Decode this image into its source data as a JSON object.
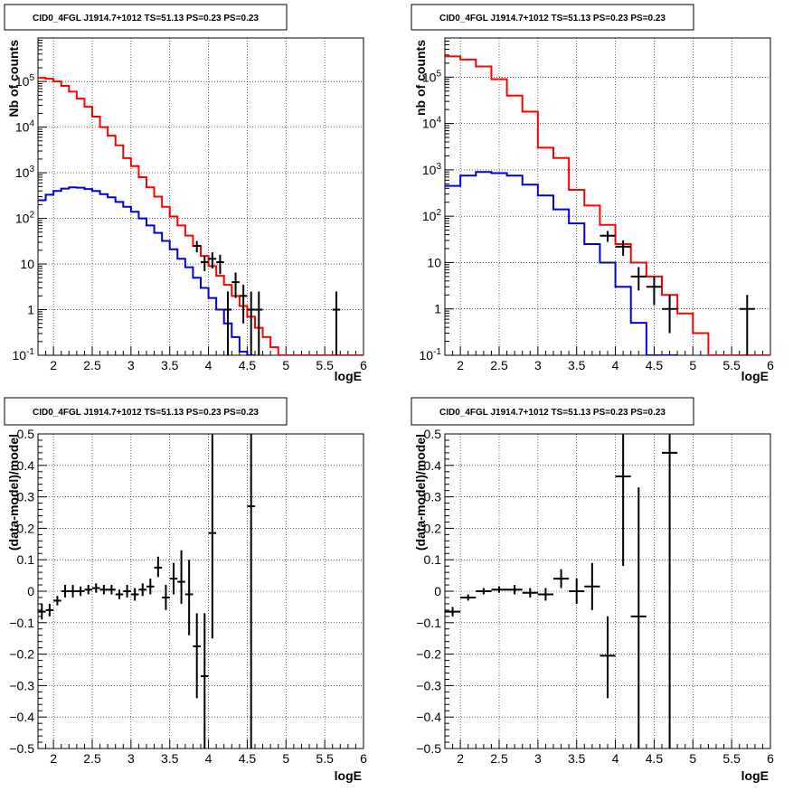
{
  "chart_data": [
    {
      "type": "histogram",
      "title": "CID0_4FGL J1914.7+1012 TS=51.13 PS=0.23 PS=0.23",
      "xlabel": "logE",
      "ylabel": "Nb of counts",
      "xlim": [
        1.8,
        6.0
      ],
      "ylim": [
        0.1,
        900000
      ],
      "yscale": "log",
      "grid": true,
      "xticks": [
        "2",
        "2.5",
        "3",
        "3.5",
        "4",
        "4.5",
        "5",
        "5.5",
        "6"
      ],
      "yticks": [
        "10^-1",
        "1",
        "10",
        "10^2",
        "10^3",
        "10^4",
        "10^5"
      ],
      "series": [
        {
          "color": "#ff0000",
          "kind": "step",
          "bins": [
            1.8,
            1.9,
            2.0,
            2.1,
            2.2,
            2.3,
            2.4,
            2.5,
            2.6,
            2.7,
            2.8,
            2.9,
            3.0,
            3.1,
            3.2,
            3.3,
            3.4,
            3.5,
            3.6,
            3.7,
            3.8,
            3.9,
            4.0,
            4.1,
            4.2,
            4.3,
            4.4,
            4.5,
            4.6,
            4.7,
            4.8,
            4.9,
            5.0,
            5.1,
            5.2,
            5.3,
            5.4,
            5.5,
            5.6,
            5.7,
            5.8,
            5.9,
            6.0
          ],
          "values": [
            120000,
            115000,
            100000,
            80000,
            60000,
            42000,
            28000,
            17000,
            10000,
            6500,
            4000,
            2100,
            1400,
            800,
            480,
            300,
            180,
            110,
            70,
            42,
            25,
            15,
            9,
            5.5,
            3.5,
            2,
            1.2,
            0.7,
            0.4,
            0.25,
            0.15,
            0.1,
            0.1,
            0.1,
            0.1,
            0.1,
            0.1,
            0.1,
            0.1,
            0.1,
            0.1,
            0.1
          ]
        },
        {
          "color": "#0000dd",
          "kind": "step",
          "bins": [
            1.8,
            1.9,
            2.0,
            2.1,
            2.2,
            2.3,
            2.4,
            2.5,
            2.6,
            2.7,
            2.8,
            2.9,
            3.0,
            3.1,
            3.2,
            3.3,
            3.4,
            3.5,
            3.6,
            3.7,
            3.8,
            3.9,
            4.0,
            4.1,
            4.2,
            4.3,
            4.4,
            4.5,
            4.6
          ],
          "values": [
            250,
            330,
            400,
            450,
            480,
            470,
            440,
            400,
            340,
            290,
            230,
            180,
            140,
            100,
            70,
            48,
            32,
            21,
            13,
            8.5,
            5,
            3,
            1.8,
            1,
            0.5,
            0.25,
            0.12,
            0.1,
            0.1
          ]
        },
        {
          "color": "#000000",
          "kind": "errorbar",
          "points": [
            {
              "x": 3.85,
              "y": 25,
              "xerr": 0.05,
              "ylo": 18,
              "yhi": 32
            },
            {
              "x": 3.95,
              "y": 11,
              "xerr": 0.05,
              "ylo": 7,
              "yhi": 15
            },
            {
              "x": 4.05,
              "y": 13,
              "xerr": 0.05,
              "ylo": 8,
              "yhi": 18
            },
            {
              "x": 4.15,
              "y": 11,
              "xerr": 0.05,
              "ylo": 6,
              "yhi": 16
            },
            {
              "x": 4.25,
              "y": 1,
              "xerr": 0.05,
              "ylo": 0.1,
              "yhi": 2.5
            },
            {
              "x": 4.35,
              "y": 4,
              "xerr": 0.05,
              "ylo": 1.8,
              "yhi": 6.5
            },
            {
              "x": 4.45,
              "y": 2,
              "xerr": 0.05,
              "ylo": 0.5,
              "yhi": 3.5
            },
            {
              "x": 4.55,
              "y": 1,
              "xerr": 0.05,
              "ylo": 0.1,
              "yhi": 2.5
            },
            {
              "x": 4.65,
              "y": 1,
              "xerr": 0.05,
              "ylo": 0.1,
              "yhi": 2.5
            },
            {
              "x": 5.65,
              "y": 1,
              "xerr": 0.05,
              "ylo": 0.1,
              "yhi": 2.5
            }
          ]
        }
      ]
    },
    {
      "type": "histogram",
      "title": "CID0_4FGL J1914.7+1012 TS=51.13 PS=0.23 PS=0.23",
      "xlabel": "logE",
      "ylabel": "nb of counts",
      "xlim": [
        1.8,
        6.0
      ],
      "ylim": [
        0.1,
        700000
      ],
      "yscale": "log",
      "grid": true,
      "xticks": [
        "2",
        "2.5",
        "3",
        "3.5",
        "4",
        "4.5",
        "5",
        "5.5",
        "6"
      ],
      "yticks": [
        "10^-1",
        "1",
        "10",
        "10^2",
        "10^3",
        "10^4",
        "10^5"
      ],
      "series": [
        {
          "color": "#ff0000",
          "kind": "step",
          "bins": [
            1.8,
            2.0,
            2.2,
            2.4,
            2.6,
            2.8,
            3.0,
            3.2,
            3.4,
            3.6,
            3.8,
            4.0,
            4.2,
            4.4,
            4.6,
            4.8,
            5.0,
            5.2,
            5.4,
            5.6,
            5.8,
            6.0
          ],
          "values": [
            280000,
            240000,
            170000,
            90000,
            40000,
            18000,
            3000,
            1800,
            370,
            170,
            65,
            25,
            10,
            5,
            2,
            0.8,
            0.3,
            0.1,
            0.1,
            0.1,
            0.1
          ],
          "steps_to": 5.2
        },
        {
          "color": "#0000dd",
          "kind": "step",
          "bins": [
            1.8,
            2.0,
            2.2,
            2.4,
            2.6,
            2.8,
            3.0,
            3.2,
            3.4,
            3.6,
            3.8,
            4.0,
            4.2,
            4.4,
            4.6,
            4.8
          ],
          "values": [
            450,
            750,
            900,
            850,
            750,
            480,
            280,
            140,
            70,
            25,
            10,
            3,
            0.5,
            0.1,
            0.1
          ]
        },
        {
          "color": "#000000",
          "kind": "errorbar",
          "points": [
            {
              "x": 3.9,
              "y": 38,
              "xerr": 0.1,
              "ylo": 28,
              "yhi": 48
            },
            {
              "x": 4.1,
              "y": 22,
              "xerr": 0.1,
              "ylo": 14,
              "yhi": 30
            },
            {
              "x": 4.3,
              "y": 5,
              "xerr": 0.1,
              "ylo": 2.5,
              "yhi": 8
            },
            {
              "x": 4.5,
              "y": 3,
              "xerr": 0.1,
              "ylo": 1.2,
              "yhi": 5
            },
            {
              "x": 4.7,
              "y": 1,
              "xerr": 0.1,
              "ylo": 0.3,
              "yhi": 2
            },
            {
              "x": 5.7,
              "y": 1,
              "xerr": 0.1,
              "ylo": 0.1,
              "yhi": 2
            }
          ]
        }
      ]
    },
    {
      "type": "scatter",
      "title": "CID0_4FGL J1914.7+1012 TS=51.13 PS=0.23 PS=0.23",
      "xlabel": "logE",
      "ylabel": "(data-model)/model",
      "xlim": [
        1.8,
        6.0
      ],
      "ylim": [
        -0.5,
        0.5
      ],
      "grid": true,
      "xticks": [
        "2",
        "2.5",
        "3",
        "3.5",
        "4",
        "4.5",
        "5",
        "5.5",
        "6"
      ],
      "yticks": [
        "-0.5",
        "-0.4",
        "-0.3",
        "-0.2",
        "-0.1",
        "0",
        "0.1",
        "0.2",
        "0.3",
        "0.4",
        "0.5"
      ],
      "series": [
        {
          "color": "#000000",
          "kind": "errorbar",
          "points": [
            {
              "x": 1.85,
              "y": -0.065,
              "xerr": 0.05,
              "ylo": -0.09,
              "yhi": -0.04
            },
            {
              "x": 1.95,
              "y": -0.06,
              "xerr": 0.05,
              "ylo": -0.08,
              "yhi": -0.04
            },
            {
              "x": 2.05,
              "y": -0.03,
              "xerr": 0.05,
              "ylo": -0.045,
              "yhi": -0.015
            },
            {
              "x": 2.15,
              "y": 0.0,
              "xerr": 0.05,
              "ylo": -0.02,
              "yhi": 0.02
            },
            {
              "x": 2.25,
              "y": 0.0,
              "xerr": 0.05,
              "ylo": -0.02,
              "yhi": 0.02
            },
            {
              "x": 2.35,
              "y": 0.0,
              "xerr": 0.05,
              "ylo": -0.015,
              "yhi": 0.015
            },
            {
              "x": 2.45,
              "y": 0.005,
              "xerr": 0.05,
              "ylo": -0.01,
              "yhi": 0.02
            },
            {
              "x": 2.55,
              "y": 0.01,
              "xerr": 0.05,
              "ylo": -0.005,
              "yhi": 0.025
            },
            {
              "x": 2.65,
              "y": 0.005,
              "xerr": 0.05,
              "ylo": -0.01,
              "yhi": 0.02
            },
            {
              "x": 2.75,
              "y": 0.005,
              "xerr": 0.05,
              "ylo": -0.01,
              "yhi": 0.02
            },
            {
              "x": 2.85,
              "y": -0.01,
              "xerr": 0.05,
              "ylo": -0.025,
              "yhi": 0.005
            },
            {
              "x": 2.95,
              "y": 0.0,
              "xerr": 0.05,
              "ylo": -0.02,
              "yhi": 0.02
            },
            {
              "x": 3.05,
              "y": -0.01,
              "xerr": 0.05,
              "ylo": -0.03,
              "yhi": 0.01
            },
            {
              "x": 3.15,
              "y": 0.005,
              "xerr": 0.05,
              "ylo": -0.015,
              "yhi": 0.025
            },
            {
              "x": 3.25,
              "y": 0.015,
              "xerr": 0.05,
              "ylo": -0.01,
              "yhi": 0.04
            },
            {
              "x": 3.35,
              "y": 0.075,
              "xerr": 0.05,
              "ylo": 0.045,
              "yhi": 0.11
            },
            {
              "x": 3.45,
              "y": -0.02,
              "xerr": 0.05,
              "ylo": -0.06,
              "yhi": 0.02
            },
            {
              "x": 3.55,
              "y": 0.04,
              "xerr": 0.05,
              "ylo": -0.01,
              "yhi": 0.09
            },
            {
              "x": 3.65,
              "y": 0.03,
              "xerr": 0.05,
              "ylo": -0.04,
              "yhi": 0.13
            },
            {
              "x": 3.75,
              "y": -0.01,
              "xerr": 0.05,
              "ylo": -0.14,
              "yhi": 0.1
            },
            {
              "x": 3.85,
              "y": -0.175,
              "xerr": 0.05,
              "ylo": -0.34,
              "yhi": -0.07
            },
            {
              "x": 3.95,
              "y": -0.27,
              "xerr": 0.05,
              "ylo": -0.5,
              "yhi": -0.07
            },
            {
              "x": 4.05,
              "y": 0.185,
              "xerr": 0.05,
              "ylo": -0.15,
              "yhi": 0.5
            },
            {
              "x": 4.55,
              "y": 0.27,
              "xerr": 0.05,
              "ylo": -0.5,
              "yhi": 0.5
            }
          ]
        }
      ]
    },
    {
      "type": "scatter",
      "title": "CID0_4FGL J1914.7+1012 TS=51.13 PS=0.23 PS=0.23",
      "xlabel": "logE",
      "ylabel": "(data-model)/model",
      "xlim": [
        1.8,
        6.0
      ],
      "ylim": [
        -0.5,
        0.5
      ],
      "grid": true,
      "xticks": [
        "2",
        "2.5",
        "3",
        "3.5",
        "4",
        "4.5",
        "5",
        "5.5",
        "6"
      ],
      "yticks": [
        "-0.5",
        "-0.4",
        "-0.3",
        "-0.2",
        "-0.1",
        "0",
        "0.1",
        "0.2",
        "0.3",
        "0.4",
        "0.5"
      ],
      "series": [
        {
          "color": "#000000",
          "kind": "errorbar",
          "points": [
            {
              "x": 1.9,
              "y": -0.065,
              "xerr": 0.1,
              "ylo": -0.08,
              "yhi": -0.05
            },
            {
              "x": 2.1,
              "y": -0.02,
              "xerr": 0.1,
              "ylo": -0.03,
              "yhi": -0.01
            },
            {
              "x": 2.3,
              "y": 0.0,
              "xerr": 0.1,
              "ylo": -0.01,
              "yhi": 0.01
            },
            {
              "x": 2.5,
              "y": 0.005,
              "xerr": 0.1,
              "ylo": -0.005,
              "yhi": 0.015
            },
            {
              "x": 2.7,
              "y": 0.005,
              "xerr": 0.1,
              "ylo": -0.01,
              "yhi": 0.02
            },
            {
              "x": 2.9,
              "y": -0.005,
              "xerr": 0.1,
              "ylo": -0.02,
              "yhi": 0.01
            },
            {
              "x": 3.1,
              "y": -0.01,
              "xerr": 0.1,
              "ylo": -0.03,
              "yhi": 0.01
            },
            {
              "x": 3.3,
              "y": 0.04,
              "xerr": 0.1,
              "ylo": 0.01,
              "yhi": 0.07
            },
            {
              "x": 3.5,
              "y": 0.0,
              "xerr": 0.1,
              "ylo": -0.04,
              "yhi": 0.04
            },
            {
              "x": 3.7,
              "y": 0.015,
              "xerr": 0.1,
              "ylo": -0.06,
              "yhi": 0.09
            },
            {
              "x": 3.9,
              "y": -0.205,
              "xerr": 0.1,
              "ylo": -0.34,
              "yhi": -0.08
            },
            {
              "x": 4.1,
              "y": 0.365,
              "xerr": 0.1,
              "ylo": 0.08,
              "yhi": 0.5
            },
            {
              "x": 4.3,
              "y": -0.08,
              "xerr": 0.1,
              "ylo": -0.5,
              "yhi": 0.33
            },
            {
              "x": 4.7,
              "y": 0.44,
              "xerr": 0.1,
              "ylo": -0.5,
              "yhi": 0.5
            }
          ]
        }
      ]
    }
  ]
}
